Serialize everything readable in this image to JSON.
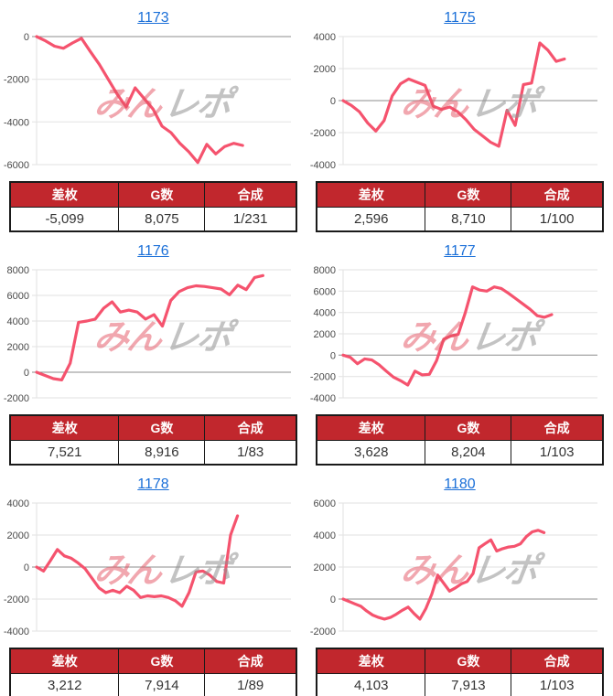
{
  "page": {
    "background": "#ffffff"
  },
  "colors": {
    "line": "#f5536e",
    "grid": "#e2e2e2",
    "zero_line": "#8d8d8d",
    "axis_label": "#4a4a4a",
    "link": "#1a6fd8",
    "header_bg": "#c1272d",
    "header_text": "#ffffff",
    "cell_text": "#333333",
    "table_border": "#1a1a1a"
  },
  "watermark": {
    "part1": "みん",
    "part2": "レポ"
  },
  "table_headers": [
    "差枚",
    "G数",
    "合成"
  ],
  "panels": [
    {
      "id": "1173",
      "table": [
        "-5,099",
        "8,075",
        "1/231"
      ]
    },
    {
      "id": "1175",
      "table": [
        "2,596",
        "8,710",
        "1/100"
      ]
    },
    {
      "id": "1176",
      "table": [
        "7,521",
        "8,916",
        "1/83"
      ]
    },
    {
      "id": "1177",
      "table": [
        "3,628",
        "8,204",
        "1/103"
      ]
    },
    {
      "id": "1178",
      "table": [
        "3,212",
        "7,914",
        "1/89"
      ]
    },
    {
      "id": "1180",
      "table": [
        "4,103",
        "7,913",
        "1/103"
      ]
    }
  ],
  "chart_data": [
    {
      "type": "line",
      "title": "1173",
      "xlabel": "",
      "ylabel": "",
      "ylim": [
        -6000,
        0
      ],
      "yticks": [
        0,
        -2000,
        -4000,
        -6000
      ],
      "x_fraction": 0.81,
      "grid": true,
      "legend": "none",
      "values": [
        0,
        -200,
        -450,
        -550,
        -300,
        -80,
        -700,
        -1300,
        -2000,
        -2700,
        -3300,
        -2400,
        -2900,
        -3400,
        -4200,
        -4500,
        -5000,
        -5400,
        -5900,
        -5050,
        -5500,
        -5150,
        -5000,
        -5100
      ]
    },
    {
      "type": "line",
      "title": "1175",
      "xlabel": "",
      "ylabel": "",
      "ylim": [
        -4000,
        4000
      ],
      "yticks": [
        4000,
        2000,
        0,
        -2000,
        -4000
      ],
      "x_fraction": 0.87,
      "grid": true,
      "legend": "none",
      "values": [
        0,
        -300,
        -700,
        -1400,
        -1900,
        -1250,
        300,
        1050,
        1350,
        1150,
        950,
        -350,
        -550,
        -400,
        -700,
        -1200,
        -1800,
        -2200,
        -2600,
        -2850,
        -600,
        -1550,
        1000,
        1100,
        3600,
        3150,
        2450,
        2600
      ]
    },
    {
      "type": "line",
      "title": "1176",
      "xlabel": "",
      "ylabel": "",
      "ylim": [
        -2000,
        8000
      ],
      "yticks": [
        8000,
        6000,
        4000,
        2000,
        0,
        -2000
      ],
      "x_fraction": 0.89,
      "grid": true,
      "legend": "none",
      "values": [
        0,
        -250,
        -500,
        -600,
        700,
        3900,
        4000,
        4150,
        5000,
        5500,
        4700,
        4850,
        4700,
        4150,
        4500,
        3600,
        5600,
        6300,
        6600,
        6750,
        6700,
        6600,
        6500,
        6050,
        6800,
        6450,
        7400,
        7550
      ]
    },
    {
      "type": "line",
      "title": "1177",
      "xlabel": "",
      "ylabel": "",
      "ylim": [
        -4000,
        8000
      ],
      "yticks": [
        8000,
        6000,
        4000,
        2000,
        0,
        -2000,
        -4000
      ],
      "x_fraction": 0.82,
      "grid": true,
      "legend": "none",
      "values": [
        0,
        -200,
        -800,
        -350,
        -450,
        -900,
        -1500,
        -2050,
        -2400,
        -2800,
        -1500,
        -1850,
        -1800,
        -500,
        1500,
        1800,
        1950,
        4000,
        6400,
        6100,
        6000,
        6400,
        6250,
        5800,
        5300,
        4800,
        4300,
        3700,
        3550,
        3800
      ]
    },
    {
      "type": "line",
      "title": "1178",
      "xlabel": "",
      "ylabel": "",
      "ylim": [
        -4000,
        4000
      ],
      "yticks": [
        4000,
        2000,
        0,
        -2000,
        -4000
      ],
      "x_fraction": 0.79,
      "grid": true,
      "legend": "none",
      "values": [
        0,
        -250,
        400,
        1100,
        700,
        550,
        250,
        -100,
        -700,
        -1300,
        -1600,
        -1450,
        -1600,
        -1200,
        -1450,
        -1900,
        -1800,
        -1850,
        -1800,
        -1900,
        -2100,
        -2450,
        -1600,
        -300,
        -250,
        -500,
        -900,
        -1000,
        2000,
        3200
      ]
    },
    {
      "type": "line",
      "title": "1180",
      "xlabel": "",
      "ylabel": "",
      "ylim": [
        -2000,
        6000
      ],
      "yticks": [
        6000,
        4000,
        2000,
        0,
        -2000
      ],
      "x_fraction": 0.79,
      "grid": true,
      "legend": "none",
      "values": [
        0,
        -150,
        -300,
        -450,
        -750,
        -1000,
        -1150,
        -1250,
        -1150,
        -950,
        -700,
        -500,
        -900,
        -1250,
        -600,
        300,
        1500,
        1000,
        500,
        700,
        950,
        1100,
        1600,
        3200,
        3450,
        3700,
        3000,
        3150,
        3250,
        3300,
        3450,
        3900,
        4200,
        4300,
        4150
      ]
    }
  ]
}
